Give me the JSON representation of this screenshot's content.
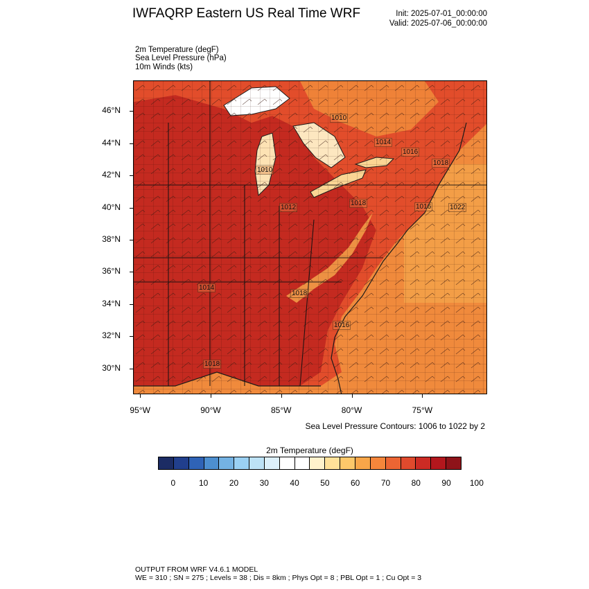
{
  "header": {
    "title": "IWFAQRP Eastern US Real Time WRF",
    "init": "Init: 2025-07-01_00:00:00",
    "valid": "Valid: 2025-07-06_00:00:00"
  },
  "fields": [
    "2m Temperature   (degF)",
    "Sea Level Pressure   (hPa)",
    "10m Winds   (kts)"
  ],
  "axes": {
    "lat_labels": [
      "46°N",
      "44°N",
      "42°N",
      "40°N",
      "38°N",
      "36°N",
      "34°N",
      "32°N",
      "30°N"
    ],
    "lon_labels": [
      "95°W",
      "90°W",
      "85°W",
      "80°W",
      "75°W"
    ]
  },
  "map": {
    "lat_range": [
      28.4,
      47.9
    ],
    "lon_range": [
      -95.5,
      -70.4
    ],
    "pressure_labels": [
      "1010",
      "1014",
      "1016",
      "1018",
      "1010",
      "1018",
      "1012",
      "1016",
      "1022",
      "1014",
      "1018",
      "1016",
      "1018"
    ],
    "colors": {
      "land_hot": "#c42a20",
      "land_warm": "#e04a2a",
      "ocean": "#f08a3c",
      "atlantic_edge": "#f4a24a",
      "great_lakes": "#ffffff",
      "boundary": "#1a1a1a"
    }
  },
  "contour_note": "Sea Level Pressure Contours: 1006 to 1022 by 2",
  "colorbar": {
    "title": "2m Temperature  (degF)",
    "labels": [
      "0",
      "10",
      "20",
      "30",
      "40",
      "50",
      "60",
      "70",
      "80",
      "90",
      "100"
    ],
    "colors": [
      "#1c2c64",
      "#213f8d",
      "#2f63b6",
      "#4d8fd0",
      "#74b2e3",
      "#9ad0f3",
      "#bde2f6",
      "#dcf0fb",
      "#ffffff",
      "#ffffff",
      "#fff2cc",
      "#ffe199",
      "#fdc86a",
      "#f9a649",
      "#f5863b",
      "#ec6533",
      "#e04a2d",
      "#cc2b24",
      "#b3171d",
      "#8e1319"
    ]
  },
  "footer": {
    "line1": "OUTPUT FROM WRF V4.6.1 MODEL",
    "line2": "WE = 310 ; SN = 275 ; Levels = 38 ; Dis = 8km ; Phys Opt = 8 ; PBL Opt = 1 ; Cu Opt = 3"
  }
}
